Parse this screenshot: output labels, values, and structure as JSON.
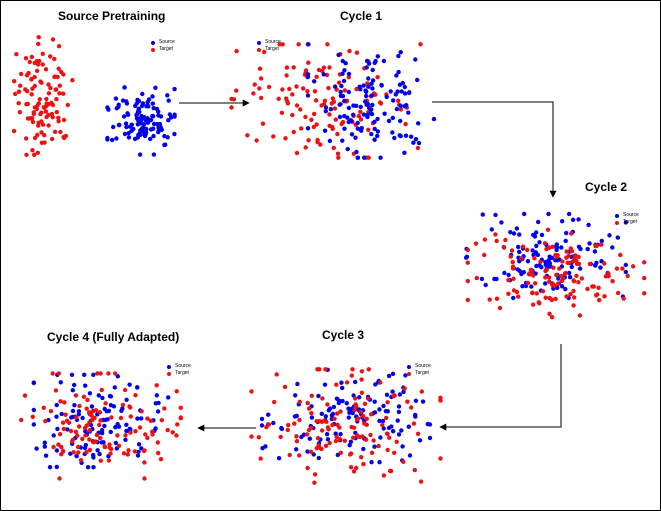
{
  "colors": {
    "source": "#0000ee",
    "target": "#ee1111",
    "arrow": "#000000"
  },
  "legend": {
    "source_label": "Source",
    "target_label": "Target"
  },
  "panels": [
    {
      "id": "pretrain",
      "title": "Source Pretraining"
    },
    {
      "id": "cycle1",
      "title": "Cycle 1"
    },
    {
      "id": "cycle2",
      "title": "Cycle 2"
    },
    {
      "id": "cycle3",
      "title": "Cycle 3"
    },
    {
      "id": "cycle4",
      "title": "Cycle 4 (Fully Adapted)"
    }
  ]
}
